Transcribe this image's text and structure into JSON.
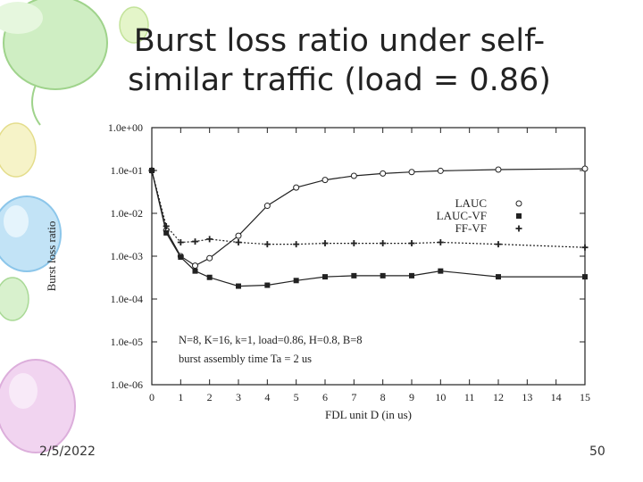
{
  "slide": {
    "title": "Burst loss ratio under self-similar traffic (load = 0.86)",
    "date": "2/5/2022",
    "page_number": "50"
  },
  "colors": {
    "deco_green": "#b7e3a6",
    "deco_blue": "#a9d6f0",
    "deco_pink": "#e9c1e8",
    "deco_yellow": "#f3f0b8",
    "ink": "#222222"
  },
  "chart_data": {
    "type": "line",
    "xlabel": "FDL unit D (in us)",
    "ylabel": "Burst loss ratio",
    "y_scale": "log",
    "xlim": [
      0,
      15
    ],
    "ylim": [
      1e-06,
      1
    ],
    "x_ticks": [
      "0",
      "1",
      "2",
      "3",
      "4",
      "5",
      "6",
      "7",
      "8",
      "9",
      "10",
      "11",
      "12",
      "13",
      "14",
      "15"
    ],
    "y_ticks": [
      "1.0e+00",
      "1.0e-01",
      "1.0e-02",
      "1.0e-03",
      "1.0e-04",
      "1.0e-05",
      "1.0e-06"
    ],
    "grid": false,
    "legend_position": "top-right",
    "annotations": [
      "N=8, K=16, k=1, load=0.86, H=0.8, B=8",
      "burst assembly time Ta = 2 us"
    ],
    "series": [
      {
        "name": "LAUC",
        "marker": "open-circle",
        "line": "solid",
        "x": [
          0,
          0.5,
          1,
          1.5,
          2,
          3,
          4,
          5,
          6,
          7,
          8,
          9,
          10,
          12,
          15
        ],
        "y": [
          0.1,
          0.004,
          0.001,
          0.0006,
          0.0009,
          0.003,
          0.015,
          0.04,
          0.06,
          0.075,
          0.085,
          0.092,
          0.098,
          0.105,
          0.11
        ]
      },
      {
        "name": "LAUC-VF",
        "marker": "filled-square",
        "line": "solid",
        "x": [
          0,
          0.5,
          1,
          1.5,
          2,
          3,
          4,
          5,
          6,
          7,
          8,
          9,
          10,
          12,
          15
        ],
        "y": [
          0.1,
          0.0035,
          0.00095,
          0.00045,
          0.00032,
          0.0002,
          0.00021,
          0.00027,
          0.00033,
          0.00035,
          0.00035,
          0.00035,
          0.00045,
          0.00033,
          0.00033
        ]
      },
      {
        "name": "FF-VF",
        "marker": "plus",
        "line": "dotted",
        "x": [
          0,
          0.5,
          1,
          1.5,
          2,
          3,
          4,
          5,
          6,
          7,
          8,
          9,
          10,
          12,
          15
        ],
        "y": [
          0.1,
          0.005,
          0.0021,
          0.0022,
          0.0025,
          0.0021,
          0.0019,
          0.0019,
          0.002,
          0.002,
          0.002,
          0.002,
          0.0021,
          0.0019,
          0.0016
        ]
      }
    ]
  }
}
